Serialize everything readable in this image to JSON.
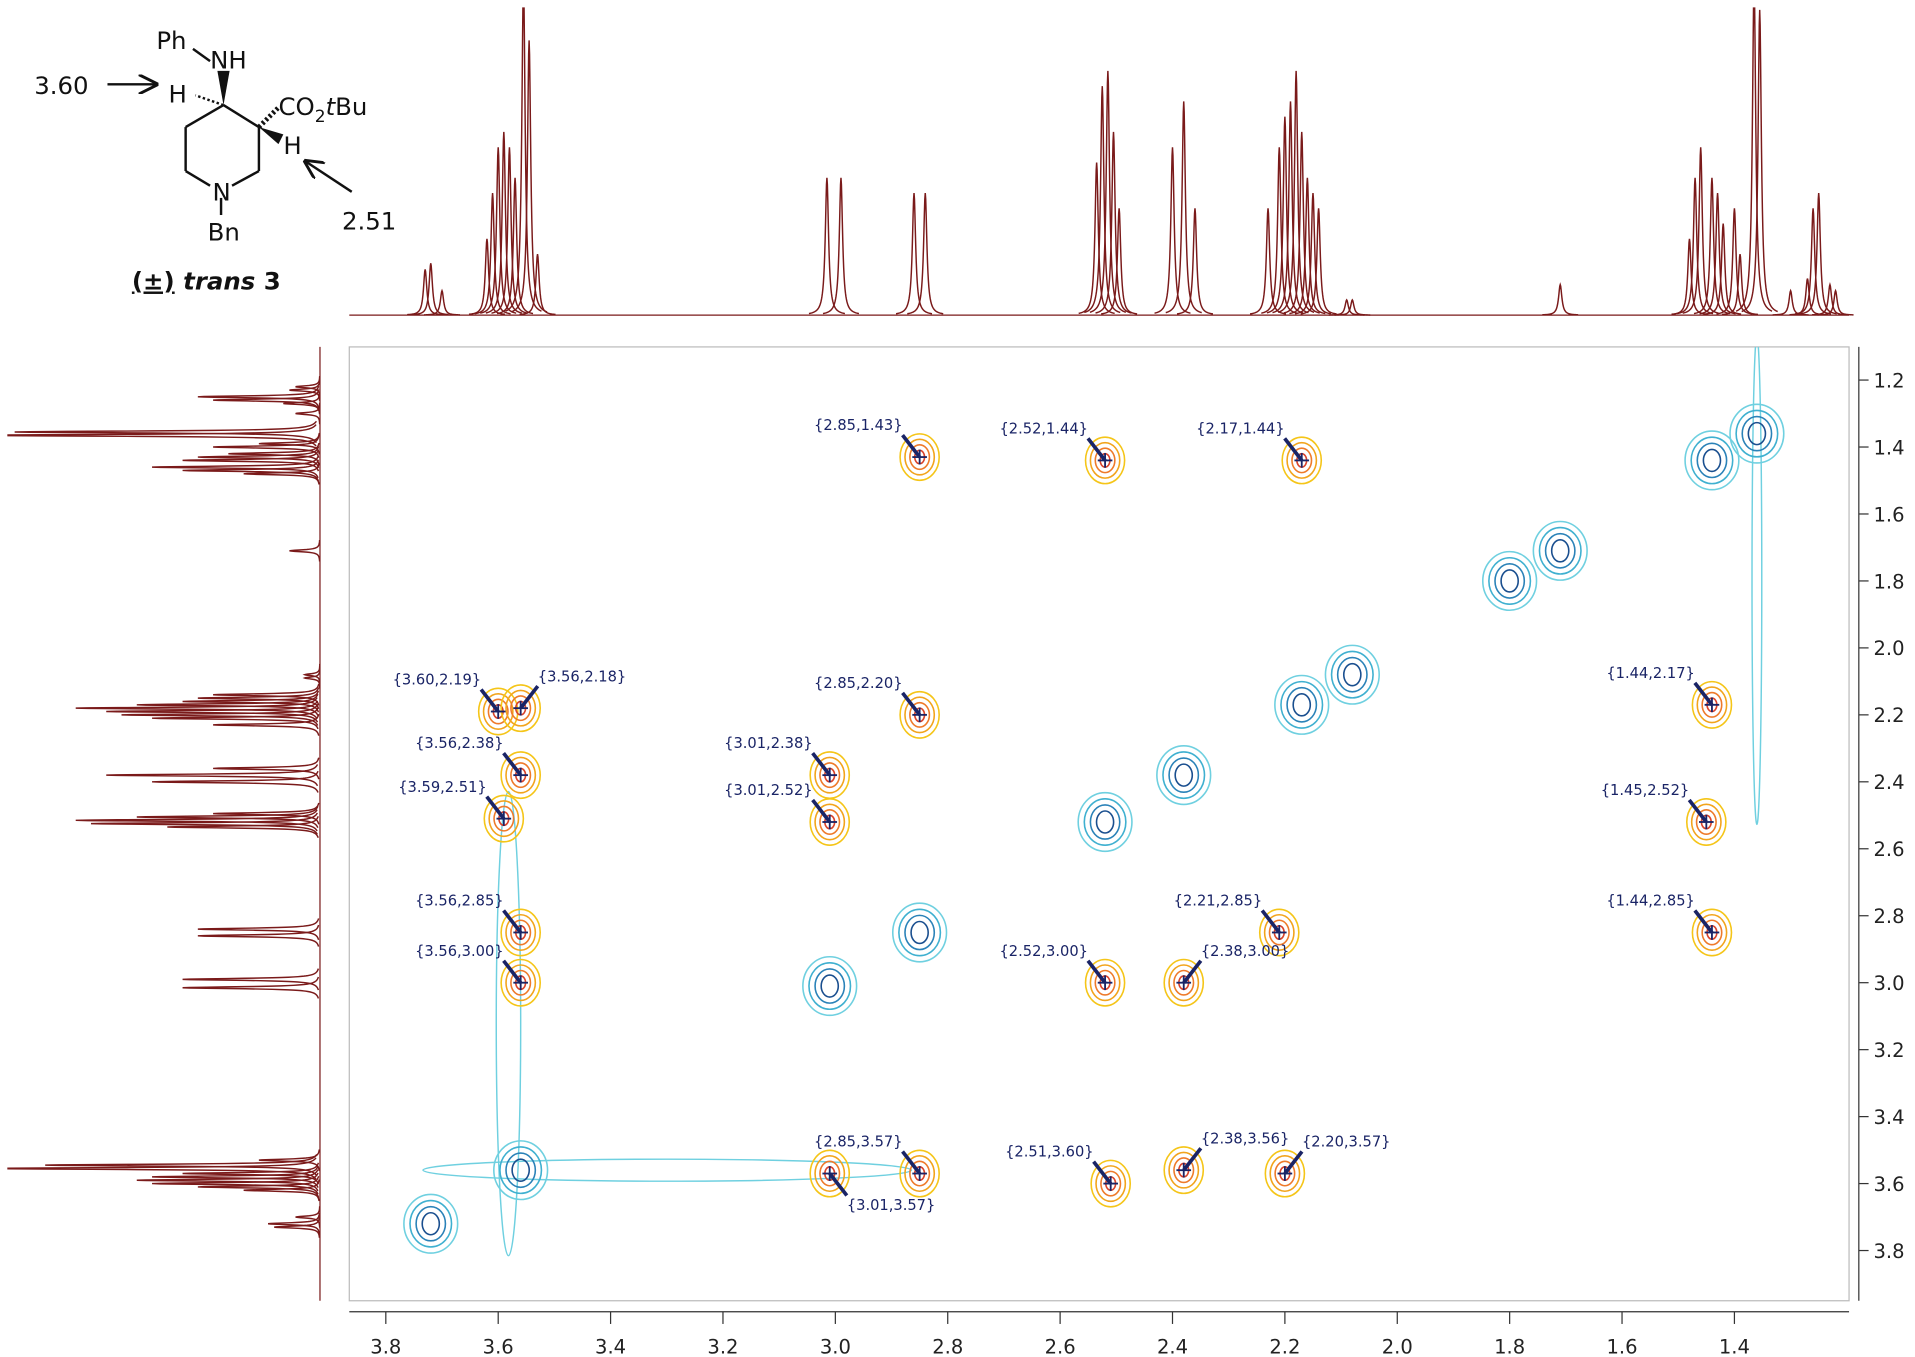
{
  "chart_data": {
    "type": "cosy",
    "xlim": [
      3.865,
      1.196
    ],
    "ylim": [
      1.101,
      3.95
    ],
    "xticks": [
      3.8,
      3.6,
      3.4,
      3.2,
      {
        "value": 3,
        "label": "3.0"
      },
      2.8,
      2.6,
      2.4,
      2.2,
      {
        "value": 2,
        "label": "2.0"
      },
      1.8,
      1.6,
      1.4
    ],
    "yticks": [
      1.2,
      1.4,
      1.6,
      1.8,
      {
        "value": 2,
        "label": "2.0"
      },
      2.2,
      2.4,
      2.6,
      2.8,
      {
        "value": 3,
        "label": "3.0"
      },
      3.2,
      3.4,
      3.6,
      3.8
    ],
    "cross_peak_colors": [
      "#f5c518",
      "#f2a41c",
      "#ee7a2a",
      "#d9432b"
    ],
    "diagonal_colors": [
      "#6fd0e0",
      "#3fb0d0",
      "#2a82b8",
      "#1a4f8f"
    ],
    "spectrum_color": "#7a1a1a",
    "label_color": "#1a2466",
    "cross_peaks": {
      "x": [
        2.85,
        2.52,
        2.17,
        3.6,
        3.56,
        2.85,
        1.44,
        3.56,
        3.01,
        3.59,
        3.01,
        1.45,
        3.56,
        2.21,
        1.44,
        3.56,
        2.52,
        2.38,
        2.85,
        3.01,
        2.51,
        2.38,
        2.2
      ],
      "y": [
        1.43,
        1.44,
        1.44,
        2.19,
        2.18,
        2.2,
        2.17,
        2.38,
        2.38,
        2.51,
        2.52,
        2.52,
        2.85,
        2.85,
        2.85,
        3.0,
        3.0,
        3.0,
        3.57,
        3.57,
        3.6,
        3.56,
        3.57
      ],
      "labels": [
        "{2.85,1.43}",
        "{2.52,1.44}",
        "{2.17,1.44}",
        "{3.60,2.19}",
        "{3.56,2.18}",
        "{2.85,2.20}",
        "{1.44,2.17}",
        "{3.56,2.38}",
        "{3.01,2.38}",
        "{3.59,2.51}",
        "{3.01,2.52}",
        "{1.45,2.52}",
        "{3.56,2.85}",
        "{2.21,2.85}",
        "{1.44,2.85}",
        "{3.56,3.00}",
        "{2.52,3.00}",
        "{2.38,3.00}",
        "{2.85,3.57}",
        "{3.01,3.57}",
        "{2.51,3.60}",
        "{2.38,3.56}",
        "{2.20,3.57}"
      ]
    },
    "diagonal_peaks": [
      3.72,
      3.56,
      3.01,
      2.85,
      2.52,
      2.38,
      2.17,
      2.08,
      1.8,
      1.71,
      1.44,
      1.36
    ],
    "spectrum": {
      "shifts": [
        3.73,
        3.72,
        3.7,
        3.62,
        3.61,
        3.6,
        3.59,
        3.58,
        3.57,
        3.555,
        3.545,
        3.53,
        3.015,
        2.99,
        2.86,
        2.84,
        2.535,
        2.525,
        2.515,
        2.505,
        2.495,
        2.4,
        2.38,
        2.36,
        2.23,
        2.21,
        2.2,
        2.19,
        2.18,
        2.17,
        2.16,
        2.15,
        2.14,
        2.09,
        2.08,
        1.71,
        1.48,
        1.47,
        1.46,
        1.44,
        1.43,
        1.42,
        1.4,
        1.39,
        1.365,
        1.355,
        1.3,
        1.27,
        1.26,
        1.25,
        1.23,
        1.22
      ],
      "heights": [
        15,
        17,
        8,
        25,
        40,
        55,
        60,
        55,
        45,
        110,
        90,
        20,
        45,
        45,
        40,
        40,
        50,
        75,
        80,
        60,
        35,
        55,
        70,
        35,
        35,
        55,
        65,
        70,
        80,
        60,
        45,
        40,
        35,
        5,
        5,
        10,
        25,
        45,
        55,
        45,
        40,
        30,
        35,
        20,
        110,
        100,
        8,
        12,
        35,
        40,
        10,
        8
      ]
    }
  },
  "structure": {
    "phenyl": "Ph",
    "amine": "NH",
    "h_left": "H",
    "ester": [
      "CO",
      "2",
      "t",
      "Bu"
    ],
    "h_right": "H",
    "ring_n": "N",
    "n_sub": "Bn",
    "shift_left": "3.60",
    "shift_right": "2.51",
    "caption": [
      "(±)",
      "trans",
      "3"
    ]
  }
}
